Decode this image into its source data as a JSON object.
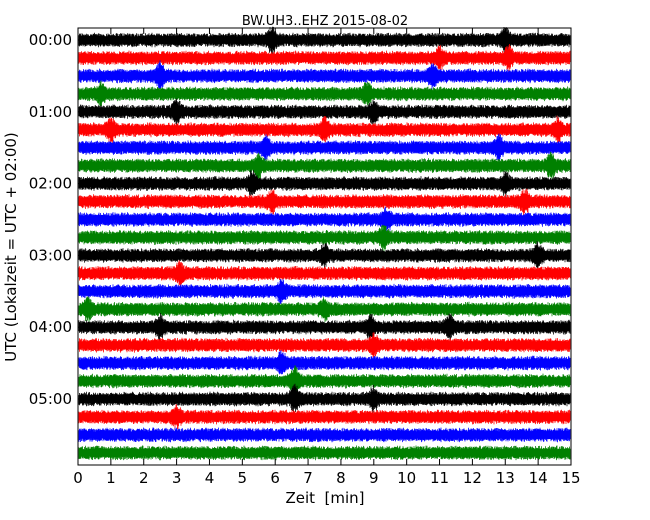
{
  "chart_data": {
    "type": "line",
    "title": "BW.UH3..EHZ 2015-08-02",
    "xlabel": "Zeit  [min]",
    "ylabel": "UTC (Lokalzeit = UTC + 02:00)",
    "xlim": [
      0,
      15
    ],
    "x_ticks": [
      "0",
      "1",
      "2",
      "3",
      "4",
      "5",
      "6",
      "7",
      "8",
      "9",
      "10",
      "11",
      "12",
      "13",
      "14",
      "15"
    ],
    "y_ticks": [
      "00:00",
      "01:00",
      "02:00",
      "03:00",
      "04:00",
      "05:00"
    ],
    "y_tick_trace_index": [
      0,
      4,
      8,
      12,
      16,
      20
    ],
    "trace_count": 24,
    "trace_colors": [
      "#000000",
      "#ff0000",
      "#0000ff",
      "#008000"
    ],
    "grid": false,
    "events": [
      {
        "trace": 0,
        "x_min": 5.9,
        "amplitude": 1.5
      },
      {
        "trace": 0,
        "x_min": 13.0,
        "amplitude": 1.2
      },
      {
        "trace": 1,
        "x_min": 13.1,
        "amplitude": 1.3
      },
      {
        "trace": 1,
        "x_min": 11.0,
        "amplitude": 1.1
      },
      {
        "trace": 2,
        "x_min": 2.5,
        "amplitude": 1.4
      },
      {
        "trace": 2,
        "x_min": 10.8,
        "amplitude": 1.2
      },
      {
        "trace": 3,
        "x_min": 0.7,
        "amplitude": 1.1
      },
      {
        "trace": 3,
        "x_min": 8.8,
        "amplitude": 1.2
      },
      {
        "trace": 4,
        "x_min": 3.0,
        "amplitude": 1.3
      },
      {
        "trace": 4,
        "x_min": 9.0,
        "amplitude": 1.2
      },
      {
        "trace": 5,
        "x_min": 1.0,
        "amplitude": 1.2
      },
      {
        "trace": 5,
        "x_min": 7.5,
        "amplitude": 1.3
      },
      {
        "trace": 5,
        "x_min": 14.6,
        "amplitude": 1.3
      },
      {
        "trace": 6,
        "x_min": 5.7,
        "amplitude": 1.2
      },
      {
        "trace": 6,
        "x_min": 12.8,
        "amplitude": 1.3
      },
      {
        "trace": 7,
        "x_min": 5.5,
        "amplitude": 1.2
      },
      {
        "trace": 7,
        "x_min": 14.4,
        "amplitude": 1.3
      },
      {
        "trace": 8,
        "x_min": 5.3,
        "amplitude": 1.3
      },
      {
        "trace": 8,
        "x_min": 13.0,
        "amplitude": 1.2
      },
      {
        "trace": 9,
        "x_min": 5.9,
        "amplitude": 1.2
      },
      {
        "trace": 9,
        "x_min": 13.6,
        "amplitude": 1.3
      },
      {
        "trace": 10,
        "x_min": 9.4,
        "amplitude": 1.1
      },
      {
        "trace": 11,
        "x_min": 9.3,
        "amplitude": 1.2
      },
      {
        "trace": 12,
        "x_min": 7.5,
        "amplitude": 1.1
      },
      {
        "trace": 12,
        "x_min": 14.0,
        "amplitude": 1.3
      },
      {
        "trace": 13,
        "x_min": 3.1,
        "amplitude": 1.2
      },
      {
        "trace": 14,
        "x_min": 6.2,
        "amplitude": 1.2
      },
      {
        "trace": 15,
        "x_min": 0.3,
        "amplitude": 1.1
      },
      {
        "trace": 15,
        "x_min": 7.5,
        "amplitude": 1.2
      },
      {
        "trace": 16,
        "x_min": 2.5,
        "amplitude": 1.2
      },
      {
        "trace": 16,
        "x_min": 8.9,
        "amplitude": 1.2
      },
      {
        "trace": 16,
        "x_min": 11.3,
        "amplitude": 1.3
      },
      {
        "trace": 17,
        "x_min": 9.0,
        "amplitude": 1.1
      },
      {
        "trace": 18,
        "x_min": 6.2,
        "amplitude": 1.2
      },
      {
        "trace": 19,
        "x_min": 6.6,
        "amplitude": 1.5
      },
      {
        "trace": 20,
        "x_min": 6.6,
        "amplitude": 1.5
      },
      {
        "trace": 20,
        "x_min": 9.0,
        "amplitude": 1.2
      },
      {
        "trace": 21,
        "x_min": 3.0,
        "amplitude": 1.2
      }
    ]
  }
}
